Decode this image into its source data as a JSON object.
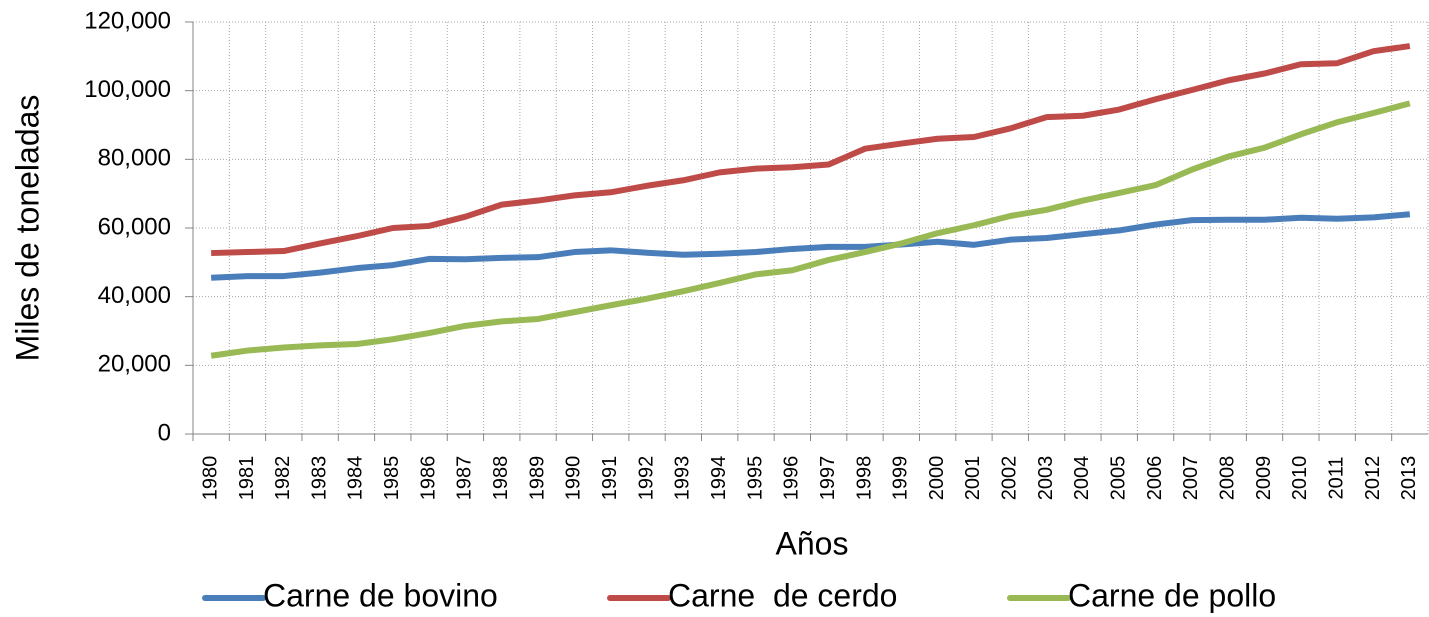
{
  "chart_data": {
    "type": "line",
    "x_label": "Años",
    "y_label": "Miles de toneladas",
    "categories": [
      "1980",
      "1981",
      "1982",
      "1983",
      "1984",
      "1985",
      "1986",
      "1987",
      "1988",
      "1989",
      "1990",
      "1991",
      "1992",
      "1993",
      "1994",
      "1995",
      "1996",
      "1997",
      "1998",
      "1999",
      "2000",
      "2001",
      "2002",
      "2003",
      "2004",
      "2005",
      "2006",
      "2007",
      "2008",
      "2009",
      "2010",
      "2011",
      "2012",
      "2013"
    ],
    "ylim": [
      0,
      120000
    ],
    "yticks": [
      0,
      {
        "value": 20000,
        "label": "20,000"
      },
      {
        "value": 40000,
        "label": "40,000"
      },
      {
        "value": 60000,
        "label": "60,000"
      },
      {
        "value": 80000,
        "label": "80,000"
      },
      {
        "value": 100000,
        "label": "100,000"
      },
      {
        "value": 120000,
        "label": "120,000"
      }
    ],
    "grid": true,
    "legend": "bottom",
    "series": [
      {
        "name": "Carne de bovino",
        "color": "#4a7ebb",
        "values": [
          45500,
          46000,
          46000,
          47000,
          48300,
          49200,
          51000,
          50900,
          51300,
          51500,
          53000,
          53500,
          52800,
          52200,
          52500,
          53000,
          53900,
          54500,
          54500,
          55200,
          56000,
          55100,
          56600,
          57100,
          58200,
          59300,
          61000,
          62300,
          62400,
          62400,
          63000,
          62700,
          63100,
          64000
        ]
      },
      {
        "name": "Carne  de cerdo",
        "color": "#be4b48",
        "values": [
          52700,
          53000,
          53300,
          55500,
          57600,
          60000,
          60600,
          63300,
          66800,
          68000,
          69500,
          70400,
          72300,
          73900,
          76200,
          77300,
          77700,
          78500,
          83100,
          84600,
          86000,
          86500,
          89000,
          92300,
          92700,
          94500,
          97500,
          100200,
          103000,
          105000,
          107700,
          108000,
          111500,
          113000
        ]
      },
      {
        "name": "Carne de pollo",
        "color": "#98b954",
        "values": [
          22800,
          24300,
          25200,
          25800,
          26200,
          27600,
          29400,
          31500,
          32800,
          33500,
          35500,
          37500,
          39400,
          41600,
          44000,
          46500,
          47700,
          50700,
          53000,
          55500,
          58500,
          60800,
          63500,
          65300,
          68000,
          70200,
          72500,
          77000,
          80800,
          83400,
          87300,
          90800,
          93500,
          96300
        ]
      }
    ]
  }
}
